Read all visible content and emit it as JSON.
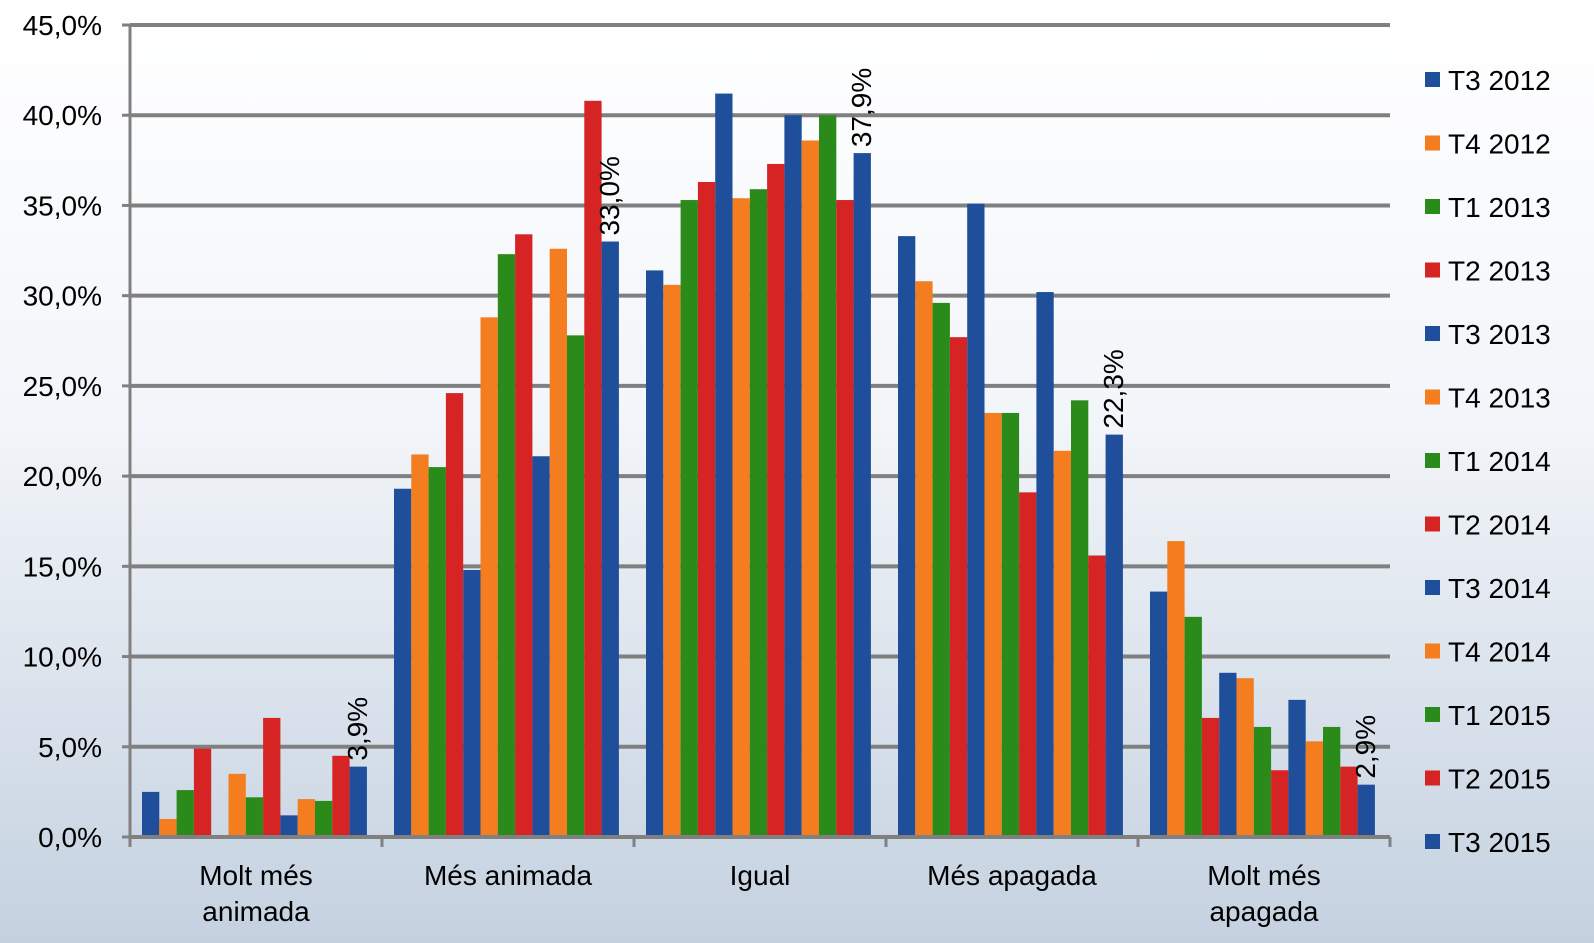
{
  "chart_data": {
    "type": "bar",
    "title": "",
    "xlabel": "",
    "ylabel": "",
    "ylim": [
      0,
      45
    ],
    "y_ticks": [
      "0,0%",
      "5,0%",
      "10,0%",
      "15,0%",
      "20,0%",
      "25,0%",
      "30,0%",
      "35,0%",
      "40,0%",
      "45,0%"
    ],
    "categories": [
      [
        "Molt més",
        "animada"
      ],
      [
        "Més animada"
      ],
      [
        "Igual"
      ],
      [
        "Més apagada"
      ],
      [
        "Molt més",
        "apagada"
      ]
    ],
    "grid": true,
    "legend_position": "right",
    "series": [
      {
        "name": "T3 2012",
        "color": "#1F4E9A",
        "values": [
          2.5,
          19.3,
          31.4,
          33.3,
          13.6
        ]
      },
      {
        "name": "T4 2012",
        "color": "#F47D20",
        "values": [
          1.0,
          21.2,
          30.6,
          30.8,
          16.4
        ]
      },
      {
        "name": "T1 2013",
        "color": "#2A8A1A",
        "values": [
          2.6,
          20.5,
          35.3,
          29.6,
          12.2
        ]
      },
      {
        "name": "T2 2013",
        "color": "#D62424",
        "values": [
          4.9,
          24.6,
          36.3,
          27.7,
          6.6
        ]
      },
      {
        "name": "T3 2013",
        "color": "#1F4E9A",
        "values": [
          0.0,
          14.8,
          41.2,
          35.1,
          9.1
        ]
      },
      {
        "name": "T4 2013",
        "color": "#F47D20",
        "values": [
          3.5,
          28.8,
          35.4,
          23.5,
          8.8
        ]
      },
      {
        "name": "T1 2014",
        "color": "#2A8A1A",
        "values": [
          2.2,
          32.3,
          35.9,
          23.5,
          6.1
        ]
      },
      {
        "name": "T2 2014",
        "color": "#D62424",
        "values": [
          6.6,
          33.4,
          37.3,
          19.1,
          3.7
        ]
      },
      {
        "name": "T3 2014",
        "color": "#1F4E9A",
        "values": [
          1.2,
          21.1,
          40.0,
          30.2,
          7.6
        ]
      },
      {
        "name": "T4 2014",
        "color": "#F47D20",
        "values": [
          2.1,
          32.6,
          38.6,
          21.4,
          5.3
        ]
      },
      {
        "name": "T1 2015",
        "color": "#2A8A1A",
        "values": [
          2.0,
          27.8,
          40.0,
          24.2,
          6.1
        ]
      },
      {
        "name": "T2 2015",
        "color": "#D62424",
        "values": [
          4.5,
          40.8,
          35.3,
          15.6,
          3.9
        ]
      },
      {
        "name": "T3 2015",
        "color": "#1F4E9A",
        "values": [
          3.9,
          33.0,
          37.9,
          22.3,
          2.9
        ]
      }
    ],
    "data_labels": [
      {
        "series": 12,
        "category": 0,
        "text": "3,9%"
      },
      {
        "series": 12,
        "category": 1,
        "text": "33,0%"
      },
      {
        "series": 12,
        "category": 2,
        "text": "37,9%"
      },
      {
        "series": 12,
        "category": 3,
        "text": "22,3%"
      },
      {
        "series": 12,
        "category": 4,
        "text": "2,9%"
      }
    ],
    "colors": {
      "gridline": "#808080",
      "axis": "#808080"
    }
  }
}
